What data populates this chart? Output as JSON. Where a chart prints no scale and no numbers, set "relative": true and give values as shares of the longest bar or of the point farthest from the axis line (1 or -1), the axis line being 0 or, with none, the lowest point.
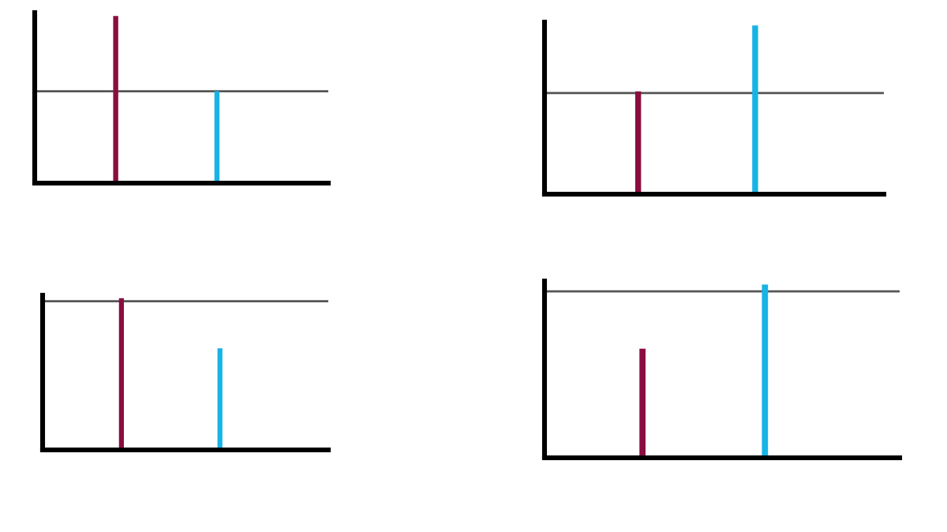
{
  "chart_data": [
    {
      "type": "bar",
      "relative": true,
      "categories": [
        null,
        null
      ],
      "values": [
        1,
        0.55
      ],
      "colors": [
        "#8b0d3f",
        "#17b3e6"
      ],
      "ref_lines": [
        {
          "axis": "y",
          "value": 0.55,
          "color": "#555555"
        }
      ],
      "grid": false,
      "legend": false
    },
    {
      "type": "bar",
      "relative": true,
      "categories": [
        null,
        null
      ],
      "values": [
        0.61,
        1
      ],
      "colors": [
        "#8b0d3f",
        "#17b3e6"
      ],
      "ref_lines": [
        {
          "axis": "y",
          "value": 0.6,
          "color": "#555555"
        }
      ],
      "grid": false,
      "legend": false
    },
    {
      "type": "bar",
      "relative": true,
      "categories": [
        null,
        null
      ],
      "values": [
        1,
        0.67
      ],
      "colors": [
        "#8b0d3f",
        "#17b3e6"
      ],
      "ref_lines": [
        {
          "axis": "y",
          "value": 0.98,
          "color": "#555555"
        }
      ],
      "grid": false,
      "legend": false
    },
    {
      "type": "bar",
      "relative": true,
      "categories": [
        null,
        null
      ],
      "values": [
        0.63,
        1
      ],
      "colors": [
        "#8b0d3f",
        "#17b3e6"
      ],
      "ref_lines": [
        {
          "axis": "y",
          "value": 0.96,
          "color": "#555555"
        }
      ],
      "grid": false,
      "legend": false
    }
  ]
}
